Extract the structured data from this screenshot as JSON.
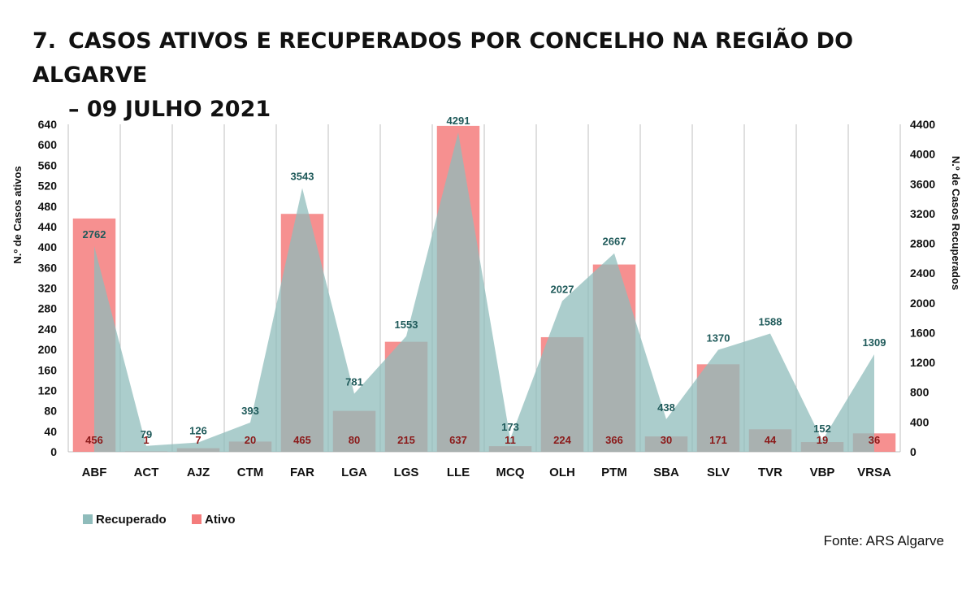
{
  "page": {
    "title_number": "7.",
    "title_line1": "CASOS ATIVOS E RECUPERADOS POR CONCELHO NA REGIÃO DO ALGARVE",
    "title_line2": "– 09 JULHO 2021",
    "source": "Fonte: ARS Algarve"
  },
  "chart_data": {
    "type": "bar",
    "categories": [
      "ABF",
      "ACT",
      "AJZ",
      "CTM",
      "FAR",
      "LGA",
      "LGS",
      "LLE",
      "MCQ",
      "OLH",
      "PTM",
      "SBA",
      "SLV",
      "TVR",
      "VBP",
      "VRSA"
    ],
    "ylabel_left": "N.º de Casos ativos",
    "ylabel_right": "N.º de Casos Recuperados",
    "ylim_left": [
      0,
      640
    ],
    "ylim_right": [
      0,
      4400
    ],
    "yticks_left": [
      0,
      40,
      80,
      120,
      160,
      200,
      240,
      280,
      320,
      360,
      400,
      440,
      480,
      520,
      560,
      600,
      640
    ],
    "yticks_right": [
      0,
      400,
      800,
      1200,
      1600,
      2000,
      2400,
      2800,
      3200,
      3600,
      4000,
      4400
    ],
    "grid": "vertical",
    "legend_position": "bottom-left",
    "series": [
      {
        "name": "Recuperado",
        "type": "area",
        "axis": "right",
        "color": "#8fbcbb",
        "label_color": "#1f5a5a",
        "values": [
          2762,
          79,
          126,
          393,
          3543,
          781,
          1553,
          4291,
          173,
          2027,
          2667,
          438,
          1370,
          1588,
          152,
          1309
        ]
      },
      {
        "name": "Ativo",
        "type": "bar",
        "axis": "left",
        "color": "#f47c7c",
        "label_color": "#8b1a1a",
        "values": [
          456,
          1,
          7,
          20,
          465,
          80,
          215,
          637,
          11,
          224,
          366,
          30,
          171,
          44,
          19,
          36
        ]
      }
    ]
  }
}
